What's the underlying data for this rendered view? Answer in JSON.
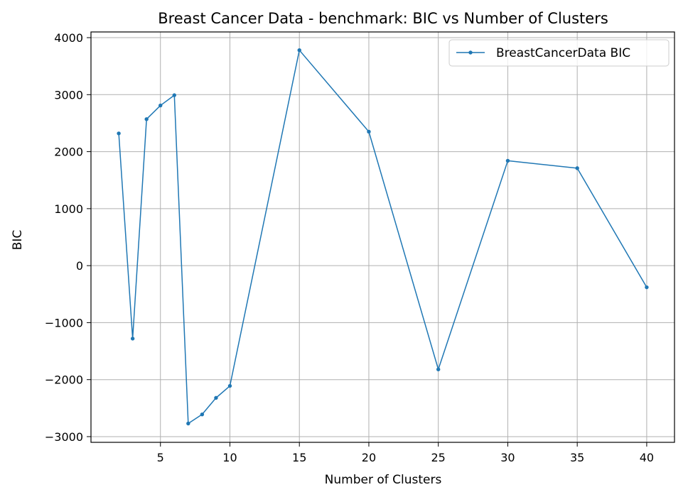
{
  "chart_data": {
    "type": "line",
    "title": "Breast Cancer Data - benchmark: BIC vs Number of Clusters",
    "xlabel": "Number of Clusters",
    "ylabel": "BIC",
    "xlim": [
      0,
      42
    ],
    "ylim": [
      -3100,
      4100
    ],
    "x_ticks": [
      5,
      10,
      15,
      20,
      25,
      30,
      35,
      40
    ],
    "y_ticks": [
      -3000,
      -2000,
      -1000,
      0,
      1000,
      2000,
      3000,
      4000
    ],
    "grid": true,
    "legend_position": "top-right",
    "series": [
      {
        "name": "BreastCancerData BIC",
        "color": "#1f77b4",
        "marker": "circle",
        "x": [
          2,
          3,
          4,
          5,
          6,
          7,
          8,
          9,
          10,
          15,
          20,
          25,
          30,
          35,
          40
        ],
        "y": [
          2320,
          -1280,
          2570,
          2810,
          2990,
          -2770,
          -2610,
          -2320,
          -2110,
          3780,
          2350,
          -1820,
          1840,
          1710,
          -380
        ]
      }
    ]
  }
}
